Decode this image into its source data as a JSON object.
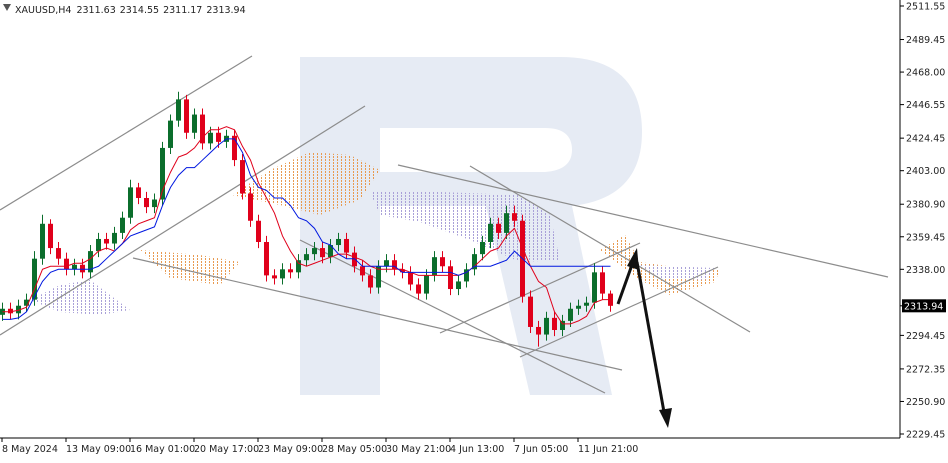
{
  "chart_data": {
    "type": "candlestick",
    "title": "XAUUSD,H4",
    "last_bar": {
      "open": 2311.63,
      "high": 2314.55,
      "low": 2311.17,
      "close": 2313.94
    },
    "categories": [
      "8 May 2024",
      null,
      null,
      null,
      null,
      null,
      null,
      null,
      "13 May 09:00",
      null,
      null,
      null,
      null,
      null,
      null,
      null,
      "16 May 01:00",
      null,
      null,
      null,
      null,
      null,
      null,
      null,
      "20 May 17:00",
      null,
      null,
      null,
      null,
      null,
      null,
      null,
      "23 May 09:00",
      null,
      null,
      null,
      null,
      null,
      null,
      null,
      "28 May 05:00",
      null,
      null,
      null,
      null,
      null,
      null,
      null,
      "30 May 21:00",
      null,
      null,
      null,
      null,
      null,
      null,
      null,
      "4 Jun 13:00",
      null,
      null,
      null,
      null,
      null,
      null,
      null,
      "7 Jun 05:00",
      null,
      null,
      null,
      null,
      null,
      null,
      null,
      "11 Jun 21:00",
      null,
      null,
      null,
      null
    ],
    "open": [
      2308,
      2312,
      2309,
      2314,
      2318,
      2345,
      2368,
      2352,
      2345,
      2338,
      2341,
      2336,
      2350,
      2358,
      2355,
      2362,
      2372,
      2392,
      2385,
      2379,
      2384,
      2418,
      2436,
      2450,
      2428,
      2440,
      2421,
      2428,
      2422,
      2426,
      2410,
      2388,
      2370,
      2356,
      2334,
      2332,
      2338,
      2336,
      2344,
      2348,
      2352,
      2346,
      2354,
      2358,
      2349,
      2340,
      2334,
      2326,
      2340,
      2344,
      2338,
      2336,
      2328,
      2322,
      2334,
      2346,
      2340,
      2325,
      2330,
      2338,
      2348,
      2356,
      2368,
      2362,
      2375,
      2370,
      2320,
      2300,
      2295,
      2306,
      2298,
      2304,
      2312,
      2314,
      2316,
      2336,
      2322
    ],
    "high": [
      2316,
      2316,
      2318,
      2322,
      2350,
      2374,
      2371,
      2356,
      2349,
      2345,
      2345,
      2354,
      2362,
      2362,
      2366,
      2376,
      2397,
      2395,
      2389,
      2388,
      2422,
      2440,
      2455,
      2453,
      2444,
      2444,
      2432,
      2432,
      2430,
      2430,
      2414,
      2392,
      2374,
      2360,
      2338,
      2342,
      2342,
      2348,
      2352,
      2356,
      2356,
      2358,
      2362,
      2362,
      2353,
      2344,
      2338,
      2344,
      2348,
      2348,
      2342,
      2340,
      2332,
      2338,
      2350,
      2350,
      2344,
      2334,
      2342,
      2352,
      2360,
      2372,
      2372,
      2380,
      2380,
      2374,
      2324,
      2304,
      2310,
      2310,
      2308,
      2316,
      2318,
      2320,
      2342,
      2340,
      2324
    ],
    "low": [
      2304,
      2305,
      2305,
      2310,
      2314,
      2341,
      2348,
      2341,
      2334,
      2334,
      2332,
      2332,
      2346,
      2351,
      2351,
      2358,
      2368,
      2381,
      2375,
      2375,
      2380,
      2414,
      2432,
      2424,
      2424,
      2417,
      2417,
      2418,
      2418,
      2406,
      2384,
      2366,
      2352,
      2330,
      2328,
      2328,
      2332,
      2332,
      2340,
      2344,
      2342,
      2342,
      2350,
      2345,
      2336,
      2330,
      2322,
      2322,
      2336,
      2334,
      2332,
      2324,
      2318,
      2318,
      2330,
      2336,
      2321,
      2321,
      2326,
      2334,
      2344,
      2352,
      2358,
      2358,
      2366,
      2316,
      2296,
      2287,
      2291,
      2294,
      2294,
      2300,
      2308,
      2310,
      2312,
      2318,
      2310
    ],
    "close": [
      2312,
      2309,
      2314,
      2318,
      2345,
      2368,
      2352,
      2345,
      2338,
      2341,
      2336,
      2350,
      2358,
      2355,
      2362,
      2372,
      2392,
      2385,
      2379,
      2384,
      2418,
      2436,
      2450,
      2428,
      2440,
      2421,
      2428,
      2422,
      2426,
      2410,
      2388,
      2370,
      2356,
      2334,
      2332,
      2338,
      2336,
      2344,
      2348,
      2352,
      2346,
      2354,
      2358,
      2349,
      2340,
      2334,
      2326,
      2340,
      2344,
      2338,
      2336,
      2328,
      2322,
      2334,
      2346,
      2340,
      2325,
      2330,
      2338,
      2348,
      2356,
      2368,
      2362,
      2375,
      2370,
      2320,
      2300,
      2295,
      2306,
      2298,
      2304,
      2312,
      2314,
      2316,
      2336,
      2322,
      2313.94
    ],
    "up_color": "#0b6e2c",
    "down_color": "#e0001b",
    "lines": [
      {
        "color": "#e0001b",
        "values": [
          2310,
          2310,
          2311,
          2313,
          2325,
          2338,
          2340,
          2340,
          2340,
          2342,
          2342,
          2345,
          2350,
          2352,
          2350,
          2355,
          2364,
          2368,
          2370,
          2372,
          2390,
          2402,
          2412,
          2414,
          2418,
          2425,
          2430,
          2430,
          2432,
          2430,
          2419,
          2410,
          2395,
          2385,
          2375,
          2360,
          2350,
          2342,
          2340,
          2342,
          2344,
          2346,
          2348,
          2348,
          2346,
          2344,
          2340,
          2338,
          2338,
          2338,
          2338,
          2336,
          2334,
          2334,
          2334,
          2334,
          2334,
          2334,
          2336,
          2340,
          2345,
          2350,
          2352,
          2360,
          2365,
          2352,
          2340,
          2330,
          2326,
          2310,
          2302,
          2302,
          2304,
          2307,
          2316,
          2318,
          2318
        ]
      },
      {
        "color": "#0018e0",
        "values": [
          2305,
          2305,
          2306,
          2310,
          2320,
          2330,
          2336,
          2338,
          2338,
          2338,
          2338,
          2338,
          2340,
          2345,
          2350,
          2355,
          2360,
          2362,
          2364,
          2366,
          2380,
          2392,
          2400,
          2405,
          2405,
          2410,
          2415,
          2420,
          2424,
          2424,
          2415,
          2400,
          2392,
          2390,
          2385,
          2385,
          2380,
          2372,
          2370,
          2365,
          2356,
          2354,
          2348,
          2345,
          2345,
          2340,
          2340,
          2340,
          2340,
          2340,
          2336,
          2336,
          2336,
          2336,
          2336,
          2336,
          2336,
          2334,
          2336,
          2340,
          2340,
          2340,
          2342,
          2344,
          2350,
          2345,
          2340,
          2340,
          2340,
          2340,
          2340,
          2340,
          2340,
          2340,
          2340,
          2340,
          2340
        ]
      }
    ],
    "ylim": [
      2229.45,
      2511.55
    ],
    "yticks": [
      2511.55,
      2489.45,
      {
        "value": 2468,
        "label": "2468.00"
      },
      2446.55,
      2424.45,
      {
        "value": 2403,
        "label": "2403.00"
      },
      {
        "value": 2380.9,
        "label": "2380.90"
      },
      2359.45,
      {
        "value": 2338,
        "label": "2338.00"
      },
      2294.45,
      2272.35,
      {
        "value": 2250.9,
        "label": "2250.90"
      },
      2229.45
    ]
  }
}
